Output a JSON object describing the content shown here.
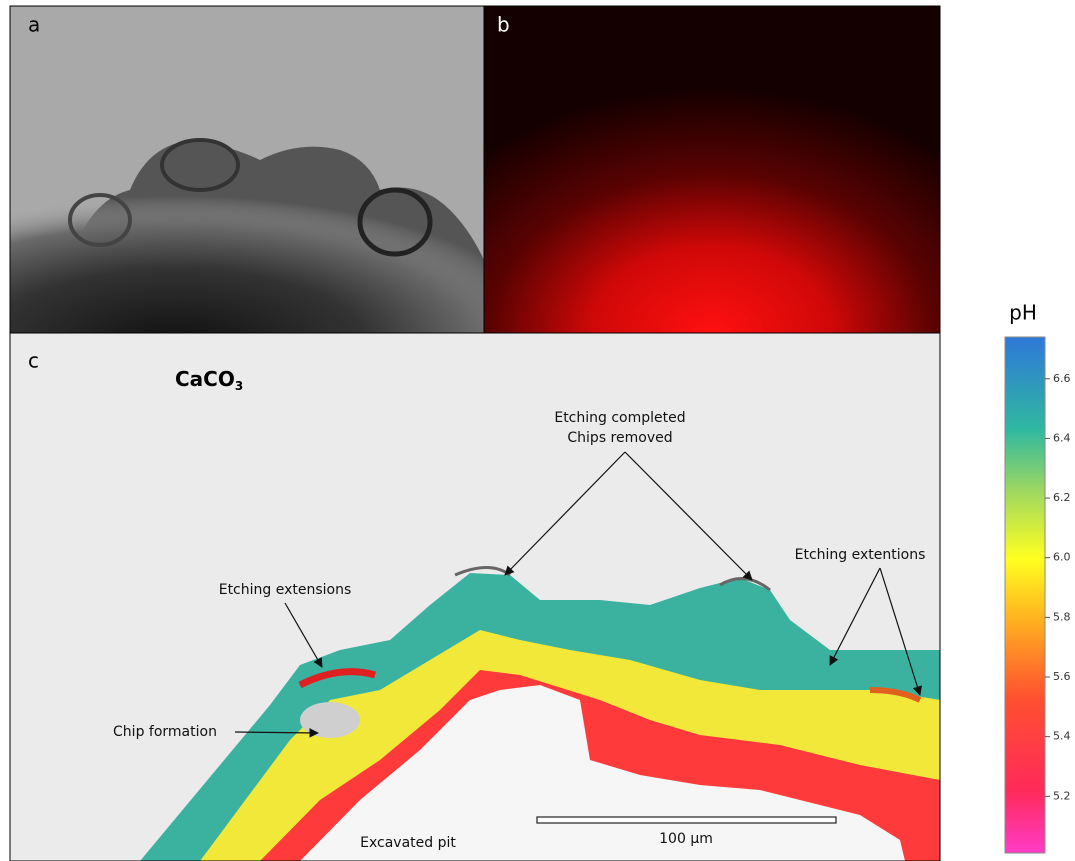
{
  "panel_labels": [
    "a",
    "b",
    "c"
  ],
  "formula": {
    "main": "CaCO",
    "sub": "3"
  },
  "annotations": {
    "etching_completed": [
      "Etching completed",
      "Chips removed"
    ],
    "etching_extensions_left": "Etching extensions",
    "etching_extensions_right": "Etching extentions",
    "chip_formation": "Chip formation",
    "excavated_pit": "Excavated pit"
  },
  "scale_bar": "100 µm",
  "colorbar": {
    "label": "pH",
    "range": [
      5.01,
      6.74
    ],
    "ticks": [
      5.2,
      5.4,
      5.6,
      5.8,
      {
        "value": 6,
        "label": "6.0"
      },
      6.2,
      6.4,
      6.6
    ]
  }
}
